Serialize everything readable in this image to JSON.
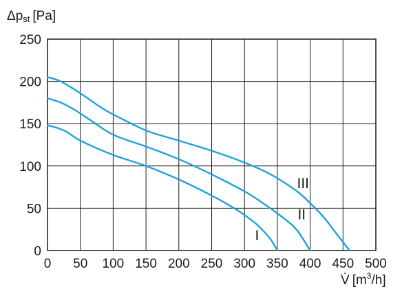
{
  "chart_data": {
    "type": "line",
    "title": "",
    "y_axis": {
      "symbol": "Δp",
      "subscript": "st",
      "unit": "[Pa]",
      "min": 0,
      "max": 250,
      "ticks": [
        0,
        50,
        100,
        150,
        200,
        250
      ]
    },
    "x_axis": {
      "symbol": "V̇",
      "unit_prefix": "[m",
      "unit_sup": "3",
      "unit_suffix": "/h]",
      "min": 0,
      "max": 500,
      "ticks": [
        0,
        50,
        100,
        150,
        200,
        250,
        300,
        350,
        400,
        450,
        500
      ]
    },
    "grid": true,
    "curve_color": "#1aa3dc",
    "series": [
      {
        "name": "I",
        "x": [
          0,
          15,
          30,
          50,
          100,
          150,
          200,
          250,
          280,
          300,
          320,
          340,
          350
        ],
        "y": [
          148,
          145,
          140,
          130,
          113,
          100,
          84,
          65,
          52,
          42,
          30,
          13,
          0
        ]
      },
      {
        "name": "II",
        "x": [
          0,
          20,
          40,
          60,
          100,
          150,
          200,
          250,
          300,
          330,
          360,
          380,
          400
        ],
        "y": [
          180,
          175,
          167,
          157,
          137,
          123,
          108,
          90,
          70,
          55,
          38,
          24,
          0
        ]
      },
      {
        "name": "III",
        "x": [
          0,
          20,
          50,
          80,
          100,
          150,
          200,
          250,
          300,
          340,
          380,
          400,
          420,
          440,
          460
        ],
        "y": [
          205,
          200,
          186,
          170,
          161,
          142,
          130,
          118,
          104,
          90,
          70,
          56,
          40,
          20,
          0
        ]
      }
    ],
    "labels": [
      {
        "text": "I",
        "x": 316,
        "y": 12
      },
      {
        "text": "II",
        "x": 381,
        "y": 37
      },
      {
        "text": "III",
        "x": 380,
        "y": 74
      }
    ]
  }
}
